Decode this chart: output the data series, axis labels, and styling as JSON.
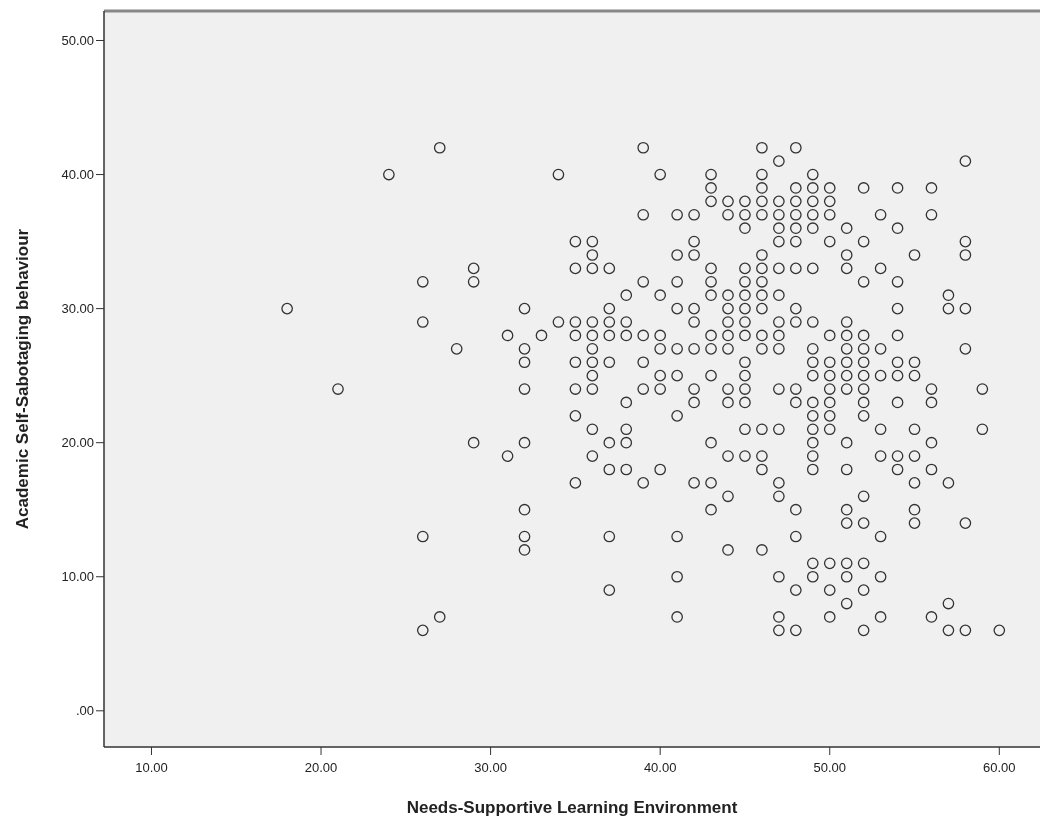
{
  "chart_data": {
    "type": "scatter",
    "xlabel": "Needs-Supportive Learning Environment",
    "ylabel": "Academic Self-Sabotaging behaviour",
    "marker": "circle",
    "grid": false,
    "xlim": [
      7.2,
      62.4
    ],
    "ylim": [
      -2.7,
      52.2
    ],
    "xticks": [
      {
        "value": 10,
        "label": "10.00"
      },
      {
        "value": 20,
        "label": "20.00"
      },
      {
        "value": 30,
        "label": "30.00"
      },
      {
        "value": 40,
        "label": "40.00"
      },
      {
        "value": 50,
        "label": "50.00"
      },
      {
        "value": 60,
        "label": "60.00"
      }
    ],
    "yticks": [
      {
        "value": 0,
        "label": ".00"
      },
      {
        "value": 10,
        "label": "10.00"
      },
      {
        "value": 20,
        "label": "20.00"
      },
      {
        "value": 30,
        "label": "30.00"
      },
      {
        "value": 40,
        "label": "40.00"
      },
      {
        "value": 50,
        "label": "50.00"
      }
    ],
    "series": [
      {
        "color": "#333333",
        "x": [
          18,
          21,
          24,
          26,
          26,
          26,
          26,
          27,
          27,
          28,
          29,
          29,
          29,
          31,
          31,
          32,
          32,
          32,
          32,
          32,
          32,
          32,
          32,
          33,
          34,
          34,
          35,
          35,
          35,
          35,
          35,
          35,
          35,
          35,
          36,
          36,
          36,
          36,
          36,
          36,
          36,
          36,
          36,
          36,
          36,
          37,
          37,
          37,
          37,
          37,
          37,
          37,
          37,
          37,
          38,
          38,
          38,
          38,
          38,
          38,
          38,
          39,
          39,
          39,
          39,
          39,
          39,
          39,
          40,
          40,
          40,
          40,
          40,
          40,
          40,
          41,
          41,
          41,
          41,
          41,
          41,
          41,
          41,
          41,
          41,
          42,
          42,
          42,
          42,
          42,
          42,
          42,
          42,
          42,
          43,
          43,
          43,
          43,
          43,
          43,
          43,
          43,
          43,
          43,
          43,
          43,
          44,
          44,
          44,
          44,
          44,
          44,
          44,
          44,
          44,
          44,
          44,
          44,
          45,
          45,
          45,
          45,
          45,
          45,
          45,
          45,
          45,
          45,
          45,
          45,
          45,
          45,
          45,
          46,
          46,
          46,
          46,
          46,
          46,
          46,
          46,
          46,
          46,
          46,
          46,
          46,
          46,
          46,
          46,
          47,
          47,
          47,
          47,
          47,
          47,
          47,
          47,
          47,
          47,
          47,
          47,
          47,
          47,
          47,
          47,
          47,
          48,
          48,
          48,
          48,
          48,
          48,
          48,
          48,
          48,
          48,
          48,
          48,
          48,
          48,
          48,
          49,
          49,
          49,
          49,
          49,
          49,
          49,
          49,
          49,
          49,
          49,
          49,
          49,
          49,
          49,
          49,
          49,
          49,
          50,
          50,
          50,
          50,
          50,
          50,
          50,
          50,
          50,
          50,
          50,
          50,
          50,
          50,
          51,
          51,
          51,
          51,
          51,
          51,
          51,
          51,
          51,
          51,
          51,
          51,
          51,
          51,
          51,
          51,
          52,
          52,
          52,
          52,
          52,
          52,
          52,
          52,
          52,
          52,
          52,
          52,
          52,
          52,
          52,
          53,
          53,
          53,
          53,
          53,
          53,
          53,
          53,
          53,
          54,
          54,
          54,
          54,
          54,
          54,
          54,
          54,
          54,
          54,
          55,
          55,
          55,
          55,
          55,
          55,
          55,
          55,
          56,
          56,
          56,
          56,
          56,
          56,
          56,
          57,
          57,
          57,
          57,
          57,
          58,
          58,
          58,
          58,
          58,
          58,
          58,
          59,
          59,
          60
        ],
        "values": [
          30,
          24,
          40,
          32,
          29,
          13,
          6,
          42,
          7,
          27,
          33,
          32,
          20,
          28,
          19,
          30,
          27,
          26,
          24,
          20,
          15,
          13,
          12,
          28,
          40,
          29,
          35,
          33,
          29,
          28,
          26,
          24,
          22,
          17,
          35,
          34,
          33,
          29,
          28,
          27,
          26,
          25,
          24,
          21,
          19,
          33,
          30,
          29,
          28,
          26,
          20,
          18,
          13,
          9,
          31,
          29,
          28,
          23,
          21,
          20,
          18,
          42,
          37,
          32,
          28,
          26,
          24,
          17,
          40,
          31,
          28,
          27,
          25,
          24,
          18,
          37,
          34,
          32,
          30,
          27,
          25,
          22,
          13,
          10,
          7,
          37,
          35,
          34,
          30,
          29,
          27,
          24,
          23,
          17,
          40,
          39,
          38,
          33,
          32,
          31,
          28,
          27,
          25,
          20,
          17,
          15,
          38,
          37,
          31,
          30,
          29,
          28,
          27,
          24,
          23,
          19,
          16,
          12,
          38,
          37,
          36,
          33,
          32,
          31,
          30,
          29,
          28,
          26,
          25,
          24,
          23,
          21,
          19,
          42,
          40,
          39,
          38,
          37,
          34,
          33,
          32,
          31,
          30,
          28,
          27,
          21,
          19,
          18,
          12,
          41,
          38,
          37,
          36,
          35,
          33,
          31,
          29,
          28,
          27,
          24,
          21,
          17,
          16,
          10,
          7,
          6,
          42,
          39,
          38,
          37,
          36,
          35,
          33,
          30,
          29,
          24,
          23,
          15,
          13,
          9,
          6,
          40,
          39,
          38,
          37,
          36,
          33,
          29,
          27,
          26,
          25,
          23,
          22,
          21,
          20,
          19,
          18,
          11,
          10,
          39,
          38,
          37,
          35,
          28,
          26,
          25,
          24,
          23,
          22,
          21,
          11,
          9,
          7,
          36,
          34,
          33,
          29,
          28,
          27,
          26,
          25,
          24,
          20,
          18,
          15,
          14,
          11,
          10,
          8,
          39,
          35,
          32,
          28,
          27,
          26,
          25,
          24,
          23,
          22,
          16,
          14,
          11,
          9,
          6,
          37,
          33,
          27,
          25,
          21,
          19,
          13,
          10,
          7,
          39,
          36,
          32,
          30,
          28,
          26,
          25,
          23,
          19,
          18,
          34,
          26,
          25,
          21,
          19,
          17,
          15,
          14,
          39,
          37,
          24,
          23,
          20,
          18,
          7,
          31,
          30,
          17,
          8,
          6,
          41,
          35,
          34,
          30,
          27,
          14,
          6,
          24,
          21,
          6
        ]
      }
    ]
  }
}
